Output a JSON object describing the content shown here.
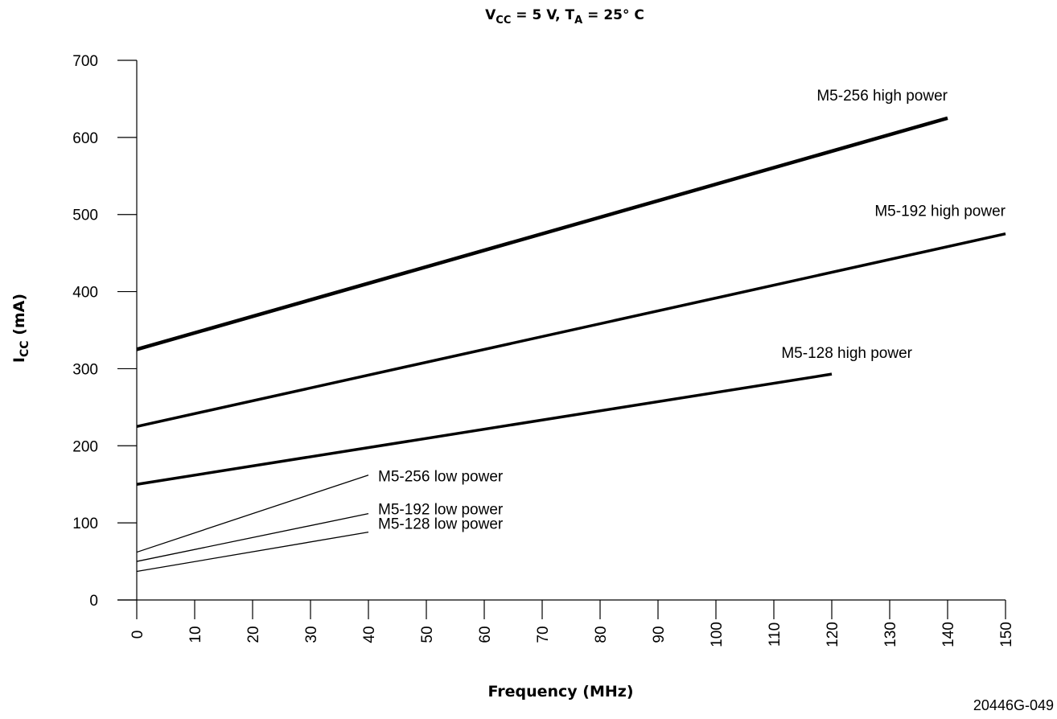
{
  "chart_data": {
    "type": "line",
    "title": {
      "v": "V",
      "v_sub": "CC",
      "mid": " = 5 V, T",
      "t_sub": "A",
      "end": " = 25° C"
    },
    "xlabel": "Frequency (MHz)",
    "ylabel": {
      "main": "I",
      "sub": "CC",
      "rest": " (mA)"
    },
    "xlim": [
      0,
      150
    ],
    "ylim": [
      0,
      700
    ],
    "x_ticks": [
      0,
      10,
      20,
      30,
      40,
      50,
      60,
      70,
      80,
      90,
      100,
      110,
      120,
      130,
      140,
      150
    ],
    "y_ticks": [
      0,
      100,
      200,
      300,
      400,
      500,
      600,
      700
    ],
    "grid": false,
    "series": [
      {
        "name": "M5-256 high power",
        "x": [
          0,
          140
        ],
        "y": [
          325,
          625
        ],
        "weight": "heavy"
      },
      {
        "name": "M5-192 high power",
        "x": [
          0,
          150
        ],
        "y": [
          225,
          475
        ],
        "weight": "medium"
      },
      {
        "name": "M5-128 high power",
        "x": [
          0,
          120
        ],
        "y": [
          150,
          293
        ],
        "weight": "medium"
      },
      {
        "name": "M5-256 low power",
        "x": [
          0,
          40
        ],
        "y": [
          62,
          162
        ],
        "weight": "thin"
      },
      {
        "name": "M5-192 low power",
        "x": [
          0,
          40
        ],
        "y": [
          50,
          112
        ],
        "weight": "thin"
      },
      {
        "name": "M5-128 low power",
        "x": [
          0,
          40
        ],
        "y": [
          37,
          88
        ],
        "weight": "thin"
      }
    ],
    "figure_id": "20446G-049"
  }
}
